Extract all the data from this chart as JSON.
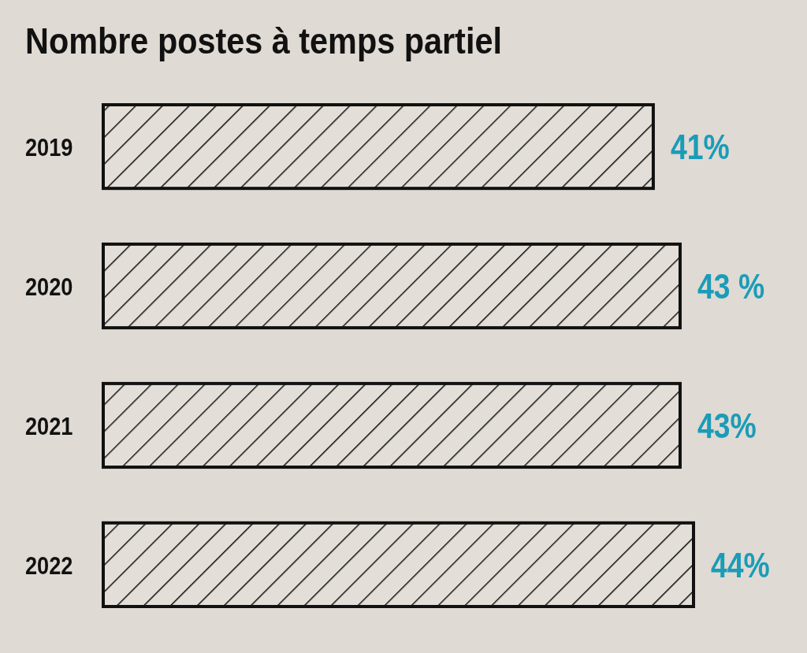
{
  "chart_data": {
    "type": "bar",
    "orientation": "horizontal",
    "title": "Nombre postes à temps partiel",
    "categories": [
      "2019",
      "2020",
      "2021",
      "2022"
    ],
    "values": [
      41,
      43,
      43,
      44
    ],
    "value_labels": [
      "41%",
      "43 %",
      "43%",
      "44%"
    ],
    "color": "#111111"
  }
}
